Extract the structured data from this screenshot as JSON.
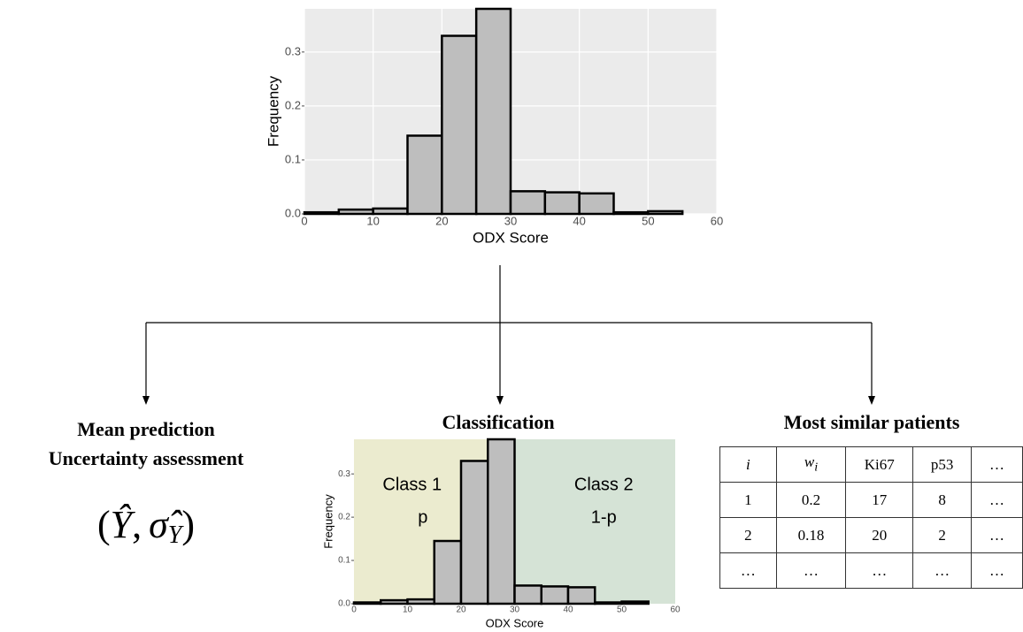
{
  "chart_data": [
    {
      "type": "histogram",
      "bins": [
        0,
        5,
        10,
        15,
        20,
        25,
        30,
        35,
        40,
        45,
        50,
        55
      ],
      "values": [
        0.003,
        0.008,
        0.01,
        0.145,
        0.33,
        0.38,
        0.042,
        0.04,
        0.038,
        0.003,
        0.005
      ],
      "color": "#bebebe",
      "xlabel": "ODX Score",
      "ylabel": "Frequency",
      "xlim": [
        0,
        60
      ],
      "ylim": [
        0,
        0.38
      ],
      "xticks": [
        0,
        10,
        20,
        30,
        40,
        50,
        60
      ],
      "yticks": [
        {
          "value": 0,
          "label": "0.0"
        },
        0.1,
        0.2,
        0.3
      ],
      "grid": true
    },
    {
      "type": "histogram",
      "title": "Classification",
      "bins": [
        0,
        5,
        10,
        15,
        20,
        25,
        30,
        35,
        40,
        45,
        50,
        55
      ],
      "values": [
        0.003,
        0.008,
        0.01,
        0.145,
        0.33,
        0.38,
        0.042,
        0.04,
        0.038,
        0.003,
        0.005
      ],
      "color": "#bebebe",
      "xlabel": "ODX Score",
      "ylabel": "Frequency",
      "xlim": [
        0,
        60
      ],
      "ylim": [
        0,
        0.38
      ],
      "xticks": [
        0,
        10,
        20,
        30,
        40,
        50,
        60
      ],
      "yticks": [
        {
          "value": 0,
          "label": "0.0"
        },
        0.1,
        0.2,
        0.3
      ],
      "grid": false,
      "regions": [
        {
          "from": 0,
          "to": 30,
          "color": "#ebebcf",
          "label": "Class 1",
          "sublabel": "p"
        },
        {
          "from": 30,
          "to": 60,
          "color": "#d5e3d6",
          "label": "Class 2",
          "sublabel": "1-p"
        }
      ]
    }
  ],
  "left": {
    "title1": "Mean prediction",
    "title2": "Uncertainty assessment",
    "formula": {
      "open": "(",
      "y_hat": "Ŷ",
      "comma": ",",
      "sigma_hat": "σ̂",
      "sub": "Y",
      "close": ")"
    }
  },
  "right": {
    "title": "Most similar patients",
    "table": {
      "header": [
        "i",
        {
          "base": "w",
          "sub": "i"
        },
        "Ki67",
        "p53",
        "…"
      ],
      "rows": [
        [
          1,
          0.2,
          17,
          8,
          "…"
        ],
        [
          2,
          0.18,
          20,
          2,
          "…"
        ],
        [
          "…",
          "…",
          "…",
          "…",
          "…"
        ]
      ]
    }
  }
}
